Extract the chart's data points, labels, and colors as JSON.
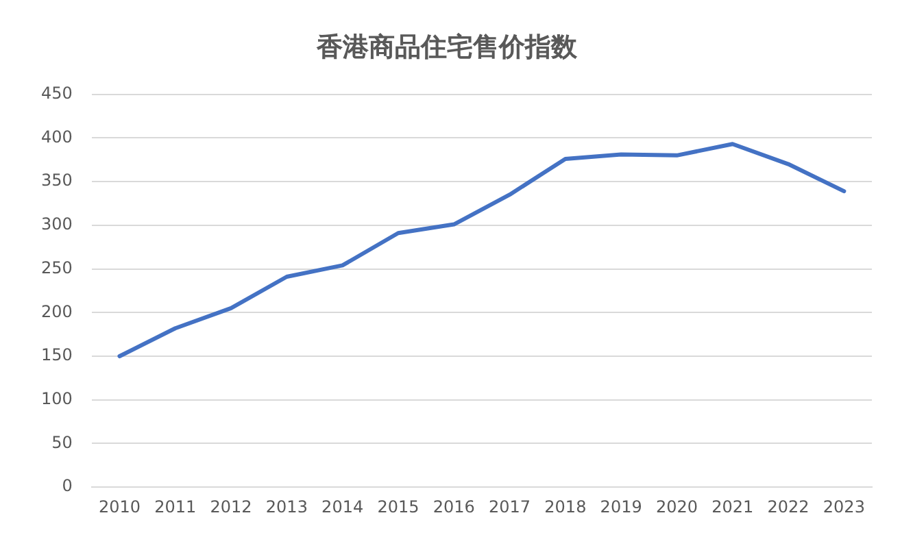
{
  "chart_data": {
    "type": "line",
    "title": "香港商品住宅售价指数",
    "categories": [
      "2010",
      "2011",
      "2012",
      "2013",
      "2014",
      "2015",
      "2016",
      "2017",
      "2018",
      "2019",
      "2020",
      "2021",
      "2022",
      "2023"
    ],
    "series": [
      {
        "color": "#4472c4",
        "values": [
          150,
          182,
          205,
          241,
          254,
          291,
          301,
          335,
          376,
          381,
          380,
          393,
          370,
          339
        ]
      }
    ],
    "ylim": [
      0,
      450
    ],
    "yticks": [
      0,
      50,
      100,
      150,
      200,
      250,
      300,
      350,
      400,
      450
    ],
    "grid": "y",
    "legend": false,
    "marker": "none",
    "line_style": "solid"
  }
}
